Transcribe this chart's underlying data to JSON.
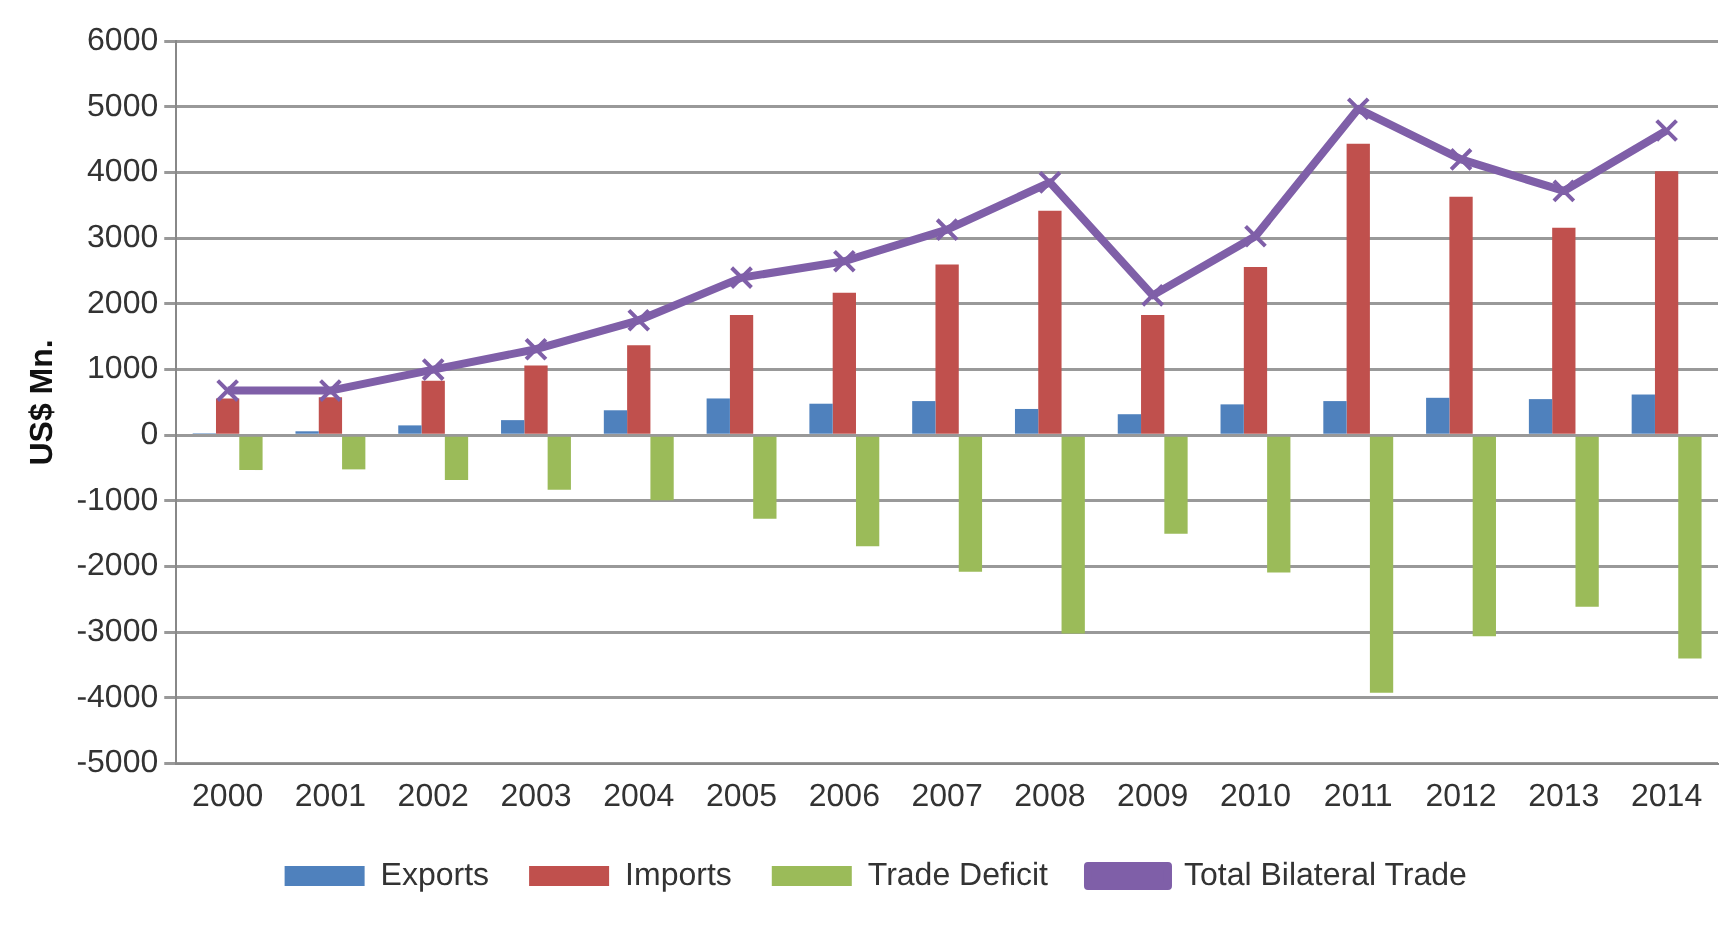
{
  "chart_data": {
    "type": "bar",
    "ylabel": "US$ Mn.",
    "categories": [
      "2000",
      "2001",
      "2002",
      "2003",
      "2004",
      "2005",
      "2006",
      "2007",
      "2008",
      "2009",
      "2010",
      "2011",
      "2012",
      "2013",
      "2014"
    ],
    "series": [
      {
        "name": "Exports",
        "color": "#4f81bd",
        "values": [
          30,
          60,
          150,
          230,
          380,
          560,
          480,
          520,
          400,
          320,
          470,
          520,
          570,
          550,
          620
        ]
      },
      {
        "name": "Imports",
        "color": "#c0504d",
        "values": [
          560,
          580,
          830,
          1060,
          1370,
          1830,
          2170,
          2600,
          3420,
          1830,
          2560,
          4440,
          3630,
          3160,
          4020
        ]
      },
      {
        "name": "Trade Deficit",
        "color": "#9bbb59",
        "values": [
          -530,
          -520,
          -680,
          -830,
          -990,
          -1270,
          -1690,
          -2080,
          -3020,
          -1500,
          -2090,
          -3920,
          -3060,
          -2610,
          -3400
        ]
      },
      {
        "name": "Total Bilateral Trade",
        "type": "line",
        "color": "#7f5fa8",
        "marker": "cross",
        "values": [
          680,
          680,
          1000,
          1310,
          1750,
          2400,
          2650,
          3130,
          3850,
          2130,
          3030,
          4970,
          4200,
          3720,
          4640
        ]
      }
    ],
    "ylim": [
      -5000,
      6000
    ],
    "yticks": [
      -5000,
      -4000,
      -3000,
      -2000,
      -1000,
      0,
      1000,
      2000,
      3000,
      4000,
      5000,
      6000
    ],
    "grid": "y",
    "legend": "bottom"
  }
}
